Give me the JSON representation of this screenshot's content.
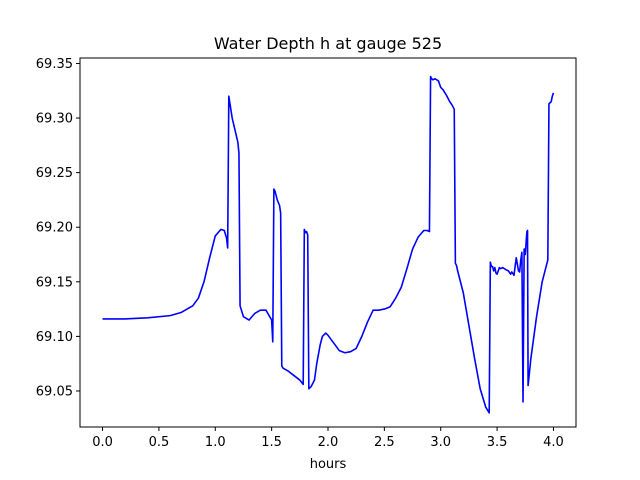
{
  "chart_data": {
    "type": "line",
    "title": "Water Depth h at gauge 525",
    "xlabel": "hours",
    "ylabel": "",
    "xlim": [
      -0.2,
      4.2
    ],
    "ylim": [
      69.017,
      69.355
    ],
    "xticks": [
      0.0,
      0.5,
      1.0,
      1.5,
      2.0,
      2.5,
      3.0,
      3.5,
      4.0
    ],
    "xtick_labels": [
      "0.0",
      "0.5",
      "1.0",
      "1.5",
      "2.0",
      "2.5",
      "3.0",
      "3.5",
      "4.0"
    ],
    "yticks": [
      69.05,
      69.1,
      69.15,
      69.2,
      69.25,
      69.3,
      69.35
    ],
    "ytick_labels": [
      "69.05",
      "69.10",
      "69.15",
      "69.20",
      "69.25",
      "69.30",
      "69.35"
    ],
    "grid": false,
    "series": [
      {
        "color": "#0000ff",
        "x": [
          0.0,
          0.2,
          0.4,
          0.6,
          0.7,
          0.8,
          0.85,
          0.9,
          0.95,
          1.0,
          1.05,
          1.08,
          1.1,
          1.11,
          1.12,
          1.15,
          1.2,
          1.21,
          1.22,
          1.25,
          1.3,
          1.35,
          1.4,
          1.45,
          1.5,
          1.51,
          1.52,
          1.53,
          1.55,
          1.57,
          1.58,
          1.59,
          1.6,
          1.65,
          1.7,
          1.75,
          1.78,
          1.79,
          1.8,
          1.81,
          1.82,
          1.83,
          1.85,
          1.88,
          1.9,
          1.93,
          1.95,
          1.98,
          2.0,
          2.05,
          2.1,
          2.15,
          2.2,
          2.25,
          2.3,
          2.35,
          2.4,
          2.45,
          2.5,
          2.55,
          2.6,
          2.65,
          2.7,
          2.75,
          2.8,
          2.85,
          2.88,
          2.9,
          2.91,
          2.92,
          2.93,
          2.95,
          2.98,
          3.0,
          3.02,
          3.05,
          3.08,
          3.1,
          3.12,
          3.13,
          3.14,
          3.15,
          3.2,
          3.25,
          3.3,
          3.35,
          3.4,
          3.43,
          3.44,
          3.45,
          3.46,
          3.47,
          3.48,
          3.49,
          3.5,
          3.51,
          3.52,
          3.53,
          3.55,
          3.58,
          3.6,
          3.62,
          3.63,
          3.65,
          3.67,
          3.69,
          3.7,
          3.71,
          3.72,
          3.73,
          3.74,
          3.745,
          3.75,
          3.755,
          3.76,
          3.765,
          3.77,
          3.775,
          3.78,
          3.8,
          3.85,
          3.9,
          3.95,
          3.96,
          3.97,
          3.98,
          3.99,
          4.0
        ],
        "y": [
          69.116,
          69.116,
          69.117,
          69.119,
          69.122,
          69.128,
          69.135,
          69.15,
          69.172,
          69.192,
          69.198,
          69.197,
          69.19,
          69.181,
          69.32,
          69.3,
          69.278,
          69.268,
          69.128,
          69.118,
          69.115,
          69.121,
          69.124,
          69.124,
          69.115,
          69.095,
          69.235,
          69.233,
          69.225,
          69.22,
          69.213,
          69.073,
          69.071,
          69.068,
          69.064,
          69.06,
          69.056,
          69.198,
          69.195,
          69.196,
          69.193,
          69.052,
          69.054,
          69.06,
          69.075,
          69.092,
          69.1,
          69.103,
          69.101,
          69.094,
          69.087,
          69.085,
          69.086,
          69.089,
          69.1,
          69.113,
          69.124,
          69.124,
          69.125,
          69.127,
          69.135,
          69.145,
          69.162,
          69.18,
          69.191,
          69.197,
          69.197,
          69.196,
          69.338,
          69.336,
          69.335,
          69.336,
          69.334,
          69.328,
          69.326,
          69.321,
          69.315,
          69.312,
          69.308,
          69.167,
          69.165,
          69.16,
          69.14,
          69.11,
          69.08,
          69.052,
          69.035,
          69.03,
          69.168,
          69.164,
          69.164,
          69.16,
          69.163,
          69.158,
          69.157,
          69.16,
          69.163,
          69.162,
          69.163,
          69.161,
          69.16,
          69.157,
          69.159,
          69.156,
          69.172,
          69.16,
          69.159,
          69.17,
          69.177,
          69.04,
          69.18,
          69.18,
          69.175,
          69.182,
          69.19,
          69.196,
          69.197,
          69.055,
          69.06,
          69.08,
          69.118,
          69.15,
          69.17,
          69.313,
          69.314,
          69.315,
          69.32,
          69.323
        ]
      }
    ]
  }
}
